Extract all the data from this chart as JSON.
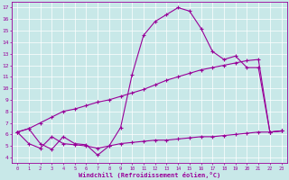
{
  "xlabel": "Windchill (Refroidissement éolien,°C)",
  "xlim": [
    -0.5,
    23.5
  ],
  "ylim": [
    3.5,
    17.5
  ],
  "yticks": [
    4,
    5,
    6,
    7,
    8,
    9,
    10,
    11,
    12,
    13,
    14,
    15,
    16,
    17
  ],
  "xticks": [
    0,
    1,
    2,
    3,
    4,
    5,
    6,
    7,
    8,
    9,
    10,
    11,
    12,
    13,
    14,
    15,
    16,
    17,
    18,
    19,
    20,
    21,
    22,
    23
  ],
  "bg_color": "#c8e8e8",
  "line_color": "#990099",
  "line1_x": [
    0,
    1,
    2,
    3,
    4,
    5,
    6,
    7,
    8,
    9,
    10,
    11,
    12,
    13,
    14,
    15,
    16,
    17,
    18,
    19,
    20,
    21,
    22,
    23
  ],
  "line1_y": [
    6.2,
    6.5,
    5.2,
    4.7,
    5.8,
    5.2,
    5.1,
    4.2,
    5.0,
    6.6,
    11.2,
    14.6,
    15.8,
    16.4,
    17.0,
    16.7,
    15.2,
    13.2,
    12.5,
    12.8,
    11.8,
    11.8,
    6.2,
    6.3
  ],
  "line2_x": [
    0,
    1,
    2,
    3,
    4,
    5,
    6,
    7,
    8,
    9,
    10,
    11,
    12,
    13,
    14,
    15,
    16,
    17,
    18,
    19,
    20,
    21,
    22,
    23
  ],
  "line2_y": [
    6.2,
    6.5,
    7.0,
    7.5,
    8.0,
    8.2,
    8.5,
    8.8,
    9.0,
    9.3,
    9.6,
    9.9,
    10.3,
    10.7,
    11.0,
    11.3,
    11.6,
    11.8,
    12.0,
    12.2,
    12.4,
    12.5,
    6.2,
    6.3
  ],
  "line3_x": [
    0,
    1,
    2,
    3,
    4,
    5,
    6,
    7,
    8,
    9,
    10,
    11,
    12,
    13,
    14,
    15,
    16,
    17,
    18,
    19,
    20,
    21,
    22,
    23
  ],
  "line3_y": [
    6.2,
    5.2,
    4.8,
    5.8,
    5.2,
    5.1,
    5.0,
    4.8,
    5.0,
    5.2,
    5.3,
    5.4,
    5.5,
    5.5,
    5.6,
    5.7,
    5.8,
    5.8,
    5.9,
    6.0,
    6.1,
    6.2,
    6.2,
    6.3
  ]
}
